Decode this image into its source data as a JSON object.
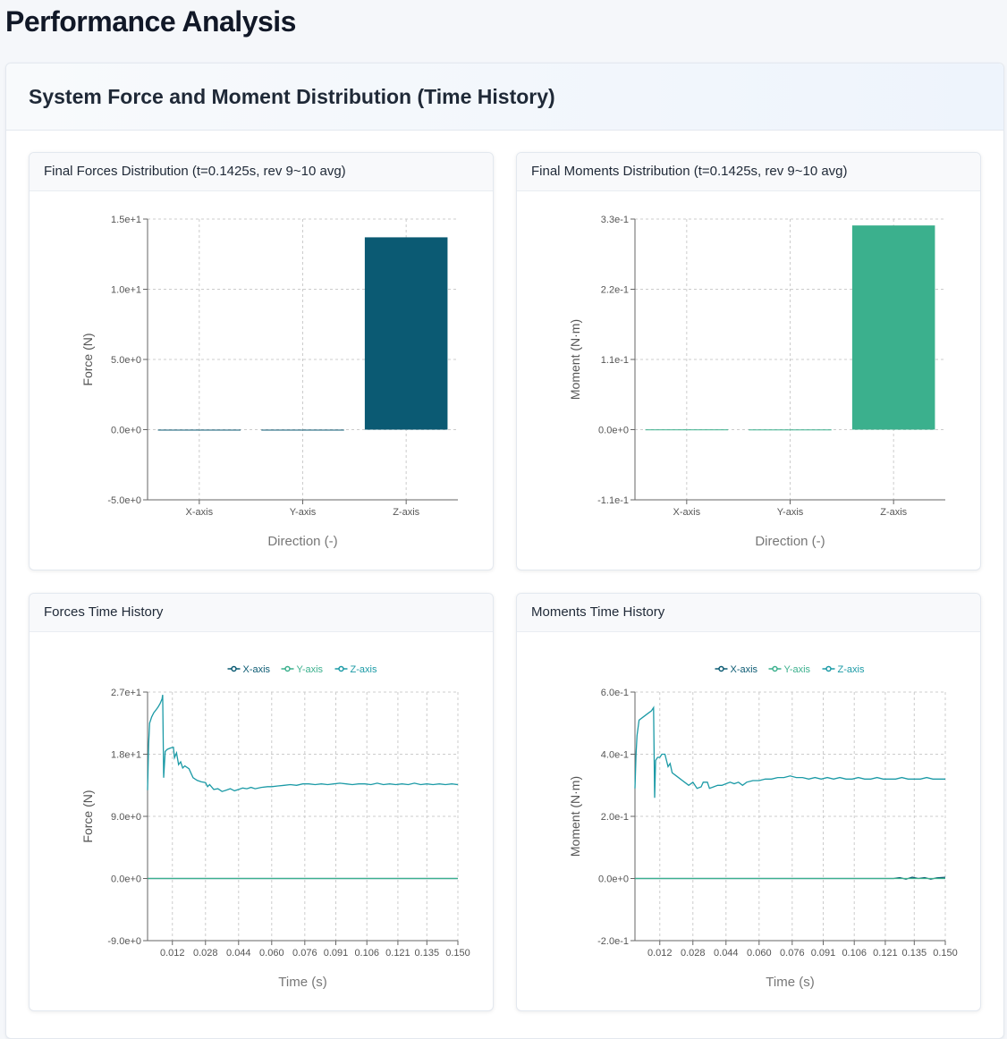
{
  "page": {
    "title": "Performance Analysis"
  },
  "section": {
    "title": "System Force and Moment Distribution (Time History)"
  },
  "colors": {
    "x": "#0b5a73",
    "y": "#3bb08d",
    "z": "#1b9aa6",
    "axis": "#666666",
    "grid": "#cccccc"
  },
  "cards": [
    {
      "title": "Final Forces Distribution (t=0.1425s, rev 9~10 avg)"
    },
    {
      "title": "Final Moments Distribution (t=0.1425s, rev 9~10 avg)"
    },
    {
      "title": "Forces Time History"
    },
    {
      "title": "Moments Time History"
    }
  ],
  "chart_data": [
    {
      "type": "bar",
      "categories": [
        "X-axis",
        "Y-axis",
        "Z-axis"
      ],
      "values": [
        0.0,
        0.0,
        13.7
      ],
      "bar_colors": [
        "#0b5a73",
        "#0b5a73",
        "#0b5a73"
      ],
      "xlabel": "Direction (-)",
      "ylabel": "Force (N)",
      "ylim": [
        -5.0,
        15.0
      ],
      "yticks": [
        -5.0,
        0.0,
        5.0,
        10.0,
        15.0
      ],
      "ytick_labels": [
        "-5.0e+0",
        "0.0e+0",
        "5.0e+0",
        "1.0e+1",
        "1.5e+1"
      ],
      "grid": true
    },
    {
      "type": "bar",
      "categories": [
        "X-axis",
        "Y-axis",
        "Z-axis"
      ],
      "values": [
        0.0004,
        0.0003,
        0.32
      ],
      "bar_colors": [
        "#3bb08d",
        "#3bb08d",
        "#3bb08d"
      ],
      "xlabel": "Direction (-)",
      "ylabel": "Moment (N·m)",
      "ylim": [
        -0.11,
        0.33
      ],
      "yticks": [
        -0.11,
        0.0,
        0.11,
        0.22,
        0.33
      ],
      "ytick_labels": [
        "-1.1e-1",
        "0.0e+0",
        "1.1e-1",
        "2.2e-1",
        "3.3e-1"
      ],
      "grid": true
    },
    {
      "type": "line",
      "xlabel": "Time (s)",
      "ylabel": "Force (N)",
      "xlim": [
        0.0,
        0.15
      ],
      "ylim": [
        -9.0,
        27.0
      ],
      "xticks": [
        0.012,
        0.028,
        0.044,
        0.06,
        0.076,
        0.091,
        0.106,
        0.121,
        0.135,
        0.15
      ],
      "xtick_labels": [
        "0.012",
        "0.028",
        "0.044",
        "0.060",
        "0.076",
        "0.091",
        "0.106",
        "0.121",
        "0.135",
        "0.150"
      ],
      "yticks": [
        -9.0,
        0.0,
        9.0,
        18.0,
        27.0
      ],
      "ytick_labels": [
        "-9.0e+0",
        "0.0e+0",
        "9.0e+0",
        "1.8e+1",
        "2.7e+1"
      ],
      "legend": "top-center",
      "grid": true,
      "series": [
        {
          "name": "X-axis",
          "color": "#0b5a73",
          "points": [
            [
              0.0,
              0.0
            ],
            [
              0.15,
              0.0
            ]
          ]
        },
        {
          "name": "Y-axis",
          "color": "#3bb08d",
          "points": [
            [
              0.0,
              0.0
            ],
            [
              0.15,
              0.0
            ]
          ]
        },
        {
          "name": "Z-axis",
          "color": "#1b9aa6",
          "points": [
            [
              0.0,
              12.8
            ],
            [
              0.0005,
              19.5
            ],
            [
              0.001,
              22.5
            ],
            [
              0.002,
              23.4
            ],
            [
              0.003,
              24.0
            ],
            [
              0.004,
              24.4
            ],
            [
              0.005,
              24.8
            ],
            [
              0.006,
              25.3
            ],
            [
              0.007,
              26.0
            ],
            [
              0.0073,
              26.6
            ],
            [
              0.0078,
              14.6
            ],
            [
              0.0085,
              18.4
            ],
            [
              0.0095,
              18.7
            ],
            [
              0.011,
              18.9
            ],
            [
              0.0125,
              19.0
            ],
            [
              0.013,
              17.5
            ],
            [
              0.014,
              18.2
            ],
            [
              0.015,
              16.5
            ],
            [
              0.016,
              16.9
            ],
            [
              0.017,
              16.0
            ],
            [
              0.018,
              16.3
            ],
            [
              0.02,
              15.9
            ],
            [
              0.022,
              14.6
            ],
            [
              0.024,
              14.2
            ],
            [
              0.026,
              14.0
            ],
            [
              0.028,
              13.9
            ],
            [
              0.029,
              13.3
            ],
            [
              0.03,
              13.6
            ],
            [
              0.032,
              12.9
            ],
            [
              0.034,
              13.0
            ],
            [
              0.036,
              12.6
            ],
            [
              0.038,
              12.8
            ],
            [
              0.04,
              13.0
            ],
            [
              0.042,
              12.7
            ],
            [
              0.044,
              12.9
            ],
            [
              0.046,
              13.1
            ],
            [
              0.048,
              13.0
            ],
            [
              0.05,
              13.2
            ],
            [
              0.052,
              13.0
            ],
            [
              0.055,
              13.2
            ],
            [
              0.058,
              13.3
            ],
            [
              0.06,
              13.3
            ],
            [
              0.063,
              13.4
            ],
            [
              0.066,
              13.5
            ],
            [
              0.069,
              13.6
            ],
            [
              0.072,
              13.5
            ],
            [
              0.075,
              13.7
            ],
            [
              0.078,
              13.7
            ],
            [
              0.081,
              13.6
            ],
            [
              0.084,
              13.7
            ],
            [
              0.087,
              13.6
            ],
            [
              0.09,
              13.7
            ],
            [
              0.093,
              13.8
            ],
            [
              0.096,
              13.7
            ],
            [
              0.099,
              13.6
            ],
            [
              0.102,
              13.7
            ],
            [
              0.105,
              13.7
            ],
            [
              0.108,
              13.6
            ],
            [
              0.111,
              13.8
            ],
            [
              0.114,
              13.6
            ],
            [
              0.117,
              13.7
            ],
            [
              0.12,
              13.6
            ],
            [
              0.123,
              13.7
            ],
            [
              0.126,
              13.6
            ],
            [
              0.129,
              13.8
            ],
            [
              0.132,
              13.6
            ],
            [
              0.135,
              13.7
            ],
            [
              0.138,
              13.6
            ],
            [
              0.141,
              13.7
            ],
            [
              0.144,
              13.6
            ],
            [
              0.147,
              13.7
            ],
            [
              0.15,
              13.6
            ]
          ]
        }
      ]
    },
    {
      "type": "line",
      "xlabel": "Time (s)",
      "ylabel": "Moment (N·m)",
      "xlim": [
        0.0,
        0.15
      ],
      "ylim": [
        -0.2,
        0.6
      ],
      "xticks": [
        0.012,
        0.028,
        0.044,
        0.06,
        0.076,
        0.091,
        0.106,
        0.121,
        0.135,
        0.15
      ],
      "xtick_labels": [
        "0.012",
        "0.028",
        "0.044",
        "0.060",
        "0.076",
        "0.091",
        "0.106",
        "0.121",
        "0.135",
        "0.150"
      ],
      "yticks": [
        -0.2,
        0.0,
        0.2,
        0.4,
        0.6
      ],
      "ytick_labels": [
        "-2.0e-1",
        "0.0e+0",
        "2.0e-1",
        "4.0e-1",
        "6.0e-1"
      ],
      "legend": "top-center",
      "grid": true,
      "series": [
        {
          "name": "X-axis",
          "color": "#0b5a73",
          "points": [
            [
              0.0,
              0.0
            ],
            [
              0.125,
              0.0
            ],
            [
              0.128,
              0.003
            ],
            [
              0.131,
              -0.002
            ],
            [
              0.134,
              0.004
            ],
            [
              0.137,
              0.0
            ],
            [
              0.14,
              0.003
            ],
            [
              0.143,
              -0.002
            ],
            [
              0.146,
              0.002
            ],
            [
              0.15,
              0.004
            ]
          ]
        },
        {
          "name": "Y-axis",
          "color": "#3bb08d",
          "points": [
            [
              0.0,
              0.0
            ],
            [
              0.15,
              0.0
            ]
          ]
        },
        {
          "name": "Z-axis",
          "color": "#1b9aa6",
          "points": [
            [
              0.0,
              0.29
            ],
            [
              0.0005,
              0.4
            ],
            [
              0.001,
              0.46
            ],
            [
              0.002,
              0.51
            ],
            [
              0.004,
              0.52
            ],
            [
              0.006,
              0.53
            ],
            [
              0.008,
              0.54
            ],
            [
              0.009,
              0.55
            ],
            [
              0.0095,
              0.26
            ],
            [
              0.01,
              0.38
            ],
            [
              0.011,
              0.39
            ],
            [
              0.012,
              0.39
            ],
            [
              0.013,
              0.4
            ],
            [
              0.0145,
              0.4
            ],
            [
              0.016,
              0.36
            ],
            [
              0.017,
              0.37
            ],
            [
              0.018,
              0.34
            ],
            [
              0.02,
              0.33
            ],
            [
              0.022,
              0.32
            ],
            [
              0.024,
              0.31
            ],
            [
              0.026,
              0.3
            ],
            [
              0.028,
              0.31
            ],
            [
              0.03,
              0.29
            ],
            [
              0.032,
              0.295
            ],
            [
              0.033,
              0.31
            ],
            [
              0.035,
              0.31
            ],
            [
              0.036,
              0.29
            ],
            [
              0.038,
              0.295
            ],
            [
              0.04,
              0.3
            ],
            [
              0.042,
              0.3
            ],
            [
              0.044,
              0.305
            ],
            [
              0.046,
              0.31
            ],
            [
              0.048,
              0.305
            ],
            [
              0.05,
              0.31
            ],
            [
              0.052,
              0.3
            ],
            [
              0.054,
              0.31
            ],
            [
              0.057,
              0.315
            ],
            [
              0.06,
              0.315
            ],
            [
              0.063,
              0.32
            ],
            [
              0.066,
              0.32
            ],
            [
              0.069,
              0.325
            ],
            [
              0.072,
              0.325
            ],
            [
              0.075,
              0.33
            ],
            [
              0.078,
              0.325
            ],
            [
              0.081,
              0.325
            ],
            [
              0.084,
              0.32
            ],
            [
              0.087,
              0.325
            ],
            [
              0.09,
              0.32
            ],
            [
              0.093,
              0.325
            ],
            [
              0.096,
              0.32
            ],
            [
              0.099,
              0.325
            ],
            [
              0.102,
              0.32
            ],
            [
              0.105,
              0.32
            ],
            [
              0.108,
              0.325
            ],
            [
              0.111,
              0.32
            ],
            [
              0.114,
              0.32
            ],
            [
              0.117,
              0.325
            ],
            [
              0.12,
              0.32
            ],
            [
              0.123,
              0.32
            ],
            [
              0.126,
              0.32
            ],
            [
              0.129,
              0.325
            ],
            [
              0.132,
              0.32
            ],
            [
              0.135,
              0.32
            ],
            [
              0.138,
              0.32
            ],
            [
              0.141,
              0.325
            ],
            [
              0.144,
              0.32
            ],
            [
              0.147,
              0.32
            ],
            [
              0.15,
              0.32
            ]
          ]
        }
      ]
    }
  ]
}
